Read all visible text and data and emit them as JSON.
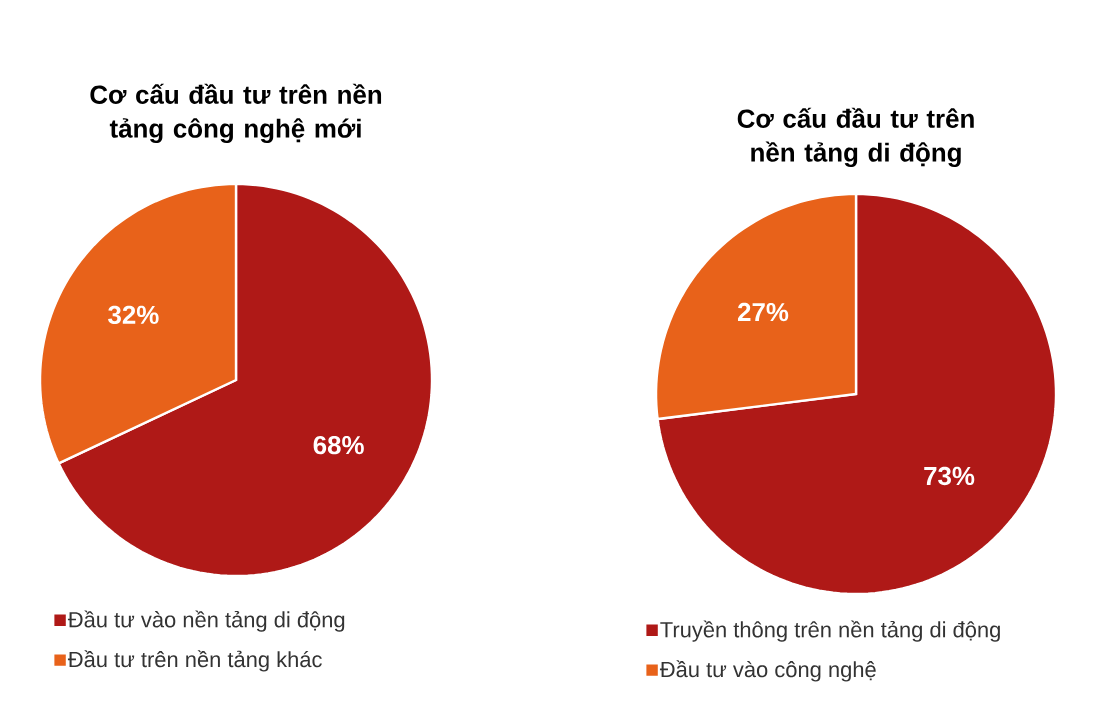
{
  "chart_data": [
    {
      "type": "pie",
      "title": "Cơ cấu đầu tư trên nền tảng công nghệ mới",
      "categories": [
        "Đầu tư vào nền tảng di động",
        "Đầu tư trên nền tảng khác"
      ],
      "values": [
        68,
        32
      ],
      "colors": [
        "#af1917",
        "#e8621a"
      ],
      "value_labels": [
        "68%",
        "32%"
      ],
      "legend": "bottom"
    },
    {
      "type": "pie",
      "title": "Cơ cấu đầu tư trên nền tảng di động",
      "categories": [
        "Truyền thông trên nền tảng di động",
        "Đầu tư vào công nghệ"
      ],
      "values": [
        73,
        27
      ],
      "colors": [
        "#af1917",
        "#e8621a"
      ],
      "value_labels": [
        "73%",
        "27%"
      ],
      "legend": "bottom"
    }
  ]
}
